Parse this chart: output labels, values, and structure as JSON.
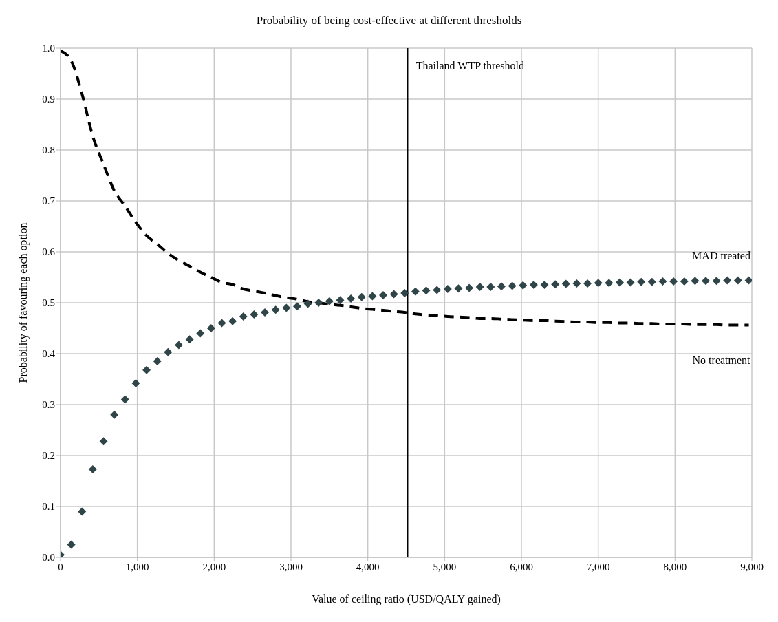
{
  "chart_data": {
    "type": "scatter",
    "title": "Probability of being cost-effective at different thresholds",
    "xlabel": "Value of ceiling ratio (USD/QALY gained)",
    "ylabel": "Probability of favouring each option",
    "xlim": [
      0,
      9000
    ],
    "xticks": [
      0,
      {
        "value": 1000,
        "label": "1,000"
      },
      {
        "value": 2000,
        "label": "2,000"
      },
      {
        "value": 3000,
        "label": "3,000"
      },
      {
        "value": 4000,
        "label": "4,000"
      },
      {
        "value": 5000,
        "label": "5,000"
      },
      {
        "value": 6000,
        "label": "6,000"
      },
      {
        "value": 7000,
        "label": "7,000"
      },
      {
        "value": 8000,
        "label": "8,000"
      },
      {
        "value": 9000,
        "label": "9,000"
      }
    ],
    "ylim": [
      0,
      1
    ],
    "yticks": [
      {
        "value": 0,
        "label": "0.0"
      },
      0.1,
      0.2,
      0.3,
      0.4,
      0.5,
      0.6,
      0.7,
      0.8,
      0.9,
      {
        "value": 1,
        "label": "1.0"
      }
    ],
    "grid": true,
    "legend": false,
    "x": [
      0,
      140,
      280,
      420,
      560,
      700,
      840,
      980,
      1120,
      1260,
      1400,
      1540,
      1680,
      1820,
      1960,
      2100,
      2240,
      2380,
      2520,
      2660,
      2800,
      2940,
      3080,
      3220,
      3360,
      3500,
      3640,
      3780,
      3920,
      4060,
      4200,
      4340,
      4480,
      4620,
      4760,
      4900,
      5040,
      5180,
      5320,
      5460,
      5600,
      5740,
      5880,
      6020,
      6160,
      6300,
      6440,
      6580,
      6720,
      6860,
      7000,
      7140,
      7280,
      7420,
      7560,
      7700,
      7840,
      7980,
      8120,
      8260,
      8400,
      8540,
      8680,
      8820,
      8960
    ],
    "series": [
      {
        "name": "MAD treated",
        "marker": "diamond",
        "color": "#2f4548",
        "values": [
          0.005,
          0.025,
          0.09,
          0.173,
          0.228,
          0.28,
          0.31,
          0.342,
          0.368,
          0.385,
          0.403,
          0.417,
          0.428,
          0.44,
          0.45,
          0.46,
          0.464,
          0.473,
          0.477,
          0.481,
          0.486,
          0.49,
          0.493,
          0.498,
          0.5,
          0.503,
          0.505,
          0.508,
          0.511,
          0.513,
          0.515,
          0.517,
          0.519,
          0.522,
          0.524,
          0.525,
          0.527,
          0.528,
          0.529,
          0.531,
          0.531,
          0.532,
          0.533,
          0.534,
          0.535,
          0.535,
          0.536,
          0.537,
          0.538,
          0.538,
          0.539,
          0.539,
          0.54,
          0.54,
          0.541,
          0.541,
          0.542,
          0.542,
          0.542,
          0.543,
          0.543,
          0.543,
          0.544,
          0.544,
          0.544
        ]
      },
      {
        "name": "No treatment",
        "type": "line",
        "line_style": "dashed",
        "marker": "none",
        "color": "#000000",
        "values": [
          0.995,
          0.975,
          0.91,
          0.827,
          0.772,
          0.72,
          0.69,
          0.658,
          0.632,
          0.615,
          0.597,
          0.583,
          0.572,
          0.56,
          0.55,
          0.54,
          0.536,
          0.527,
          0.523,
          0.519,
          0.514,
          0.51,
          0.507,
          0.502,
          0.5,
          0.497,
          0.495,
          0.492,
          0.489,
          0.487,
          0.485,
          0.483,
          0.481,
          0.478,
          0.476,
          0.475,
          0.473,
          0.472,
          0.471,
          0.469,
          0.469,
          0.468,
          0.467,
          0.466,
          0.465,
          0.465,
          0.464,
          0.463,
          0.462,
          0.462,
          0.461,
          0.461,
          0.46,
          0.46,
          0.459,
          0.459,
          0.458,
          0.458,
          0.458,
          0.457,
          0.457,
          0.457,
          0.456,
          0.456,
          0.456
        ]
      }
    ],
    "ref_lines": [
      {
        "axis": "x",
        "value": 4520,
        "label": "Thailand WTP threshold",
        "color": "#000000"
      }
    ]
  }
}
